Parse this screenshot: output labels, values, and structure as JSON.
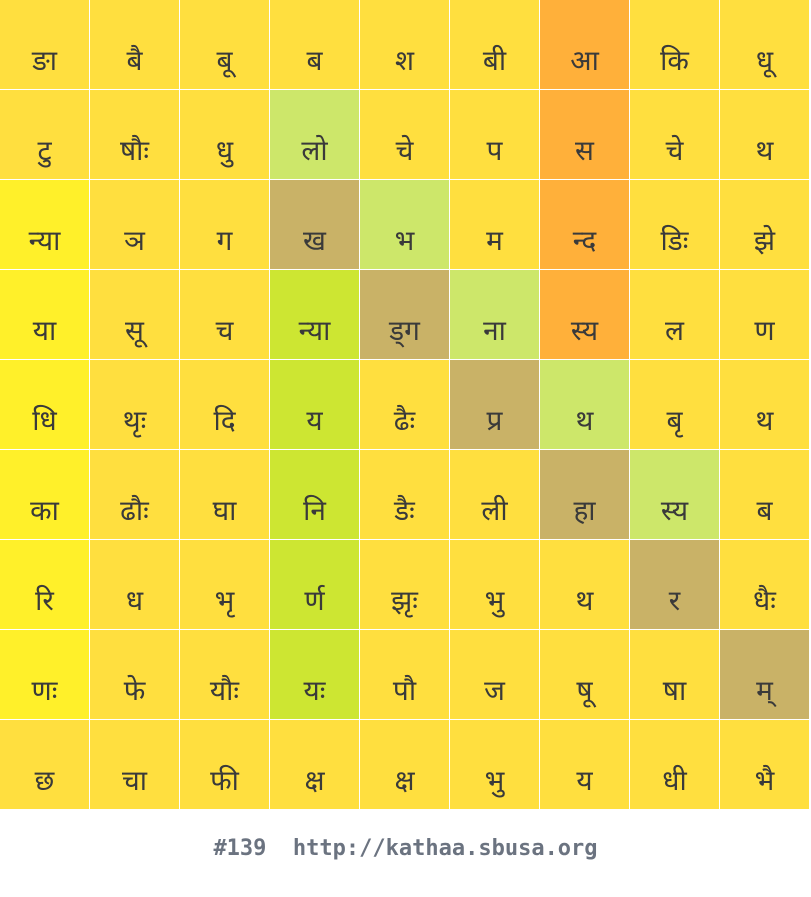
{
  "colors": {
    "Y": "#ffdf3f",
    "B": "#fff02a",
    "O": "#ffb03a",
    "G": "#cde76a",
    "L": "#cde632",
    "K": "#c9b267"
  },
  "grid": {
    "rows": [
      [
        {
          "ch": "ङा",
          "c": "Y"
        },
        {
          "ch": "बै",
          "c": "Y"
        },
        {
          "ch": "बू",
          "c": "Y"
        },
        {
          "ch": "ब",
          "c": "Y"
        },
        {
          "ch": "श",
          "c": "Y"
        },
        {
          "ch": "बी",
          "c": "Y"
        },
        {
          "ch": "आ",
          "c": "O"
        },
        {
          "ch": "कि",
          "c": "Y"
        },
        {
          "ch": "धू",
          "c": "Y"
        }
      ],
      [
        {
          "ch": "टु",
          "c": "Y"
        },
        {
          "ch": "षौः",
          "c": "Y"
        },
        {
          "ch": "धु",
          "c": "Y"
        },
        {
          "ch": "लो",
          "c": "G"
        },
        {
          "ch": "चे",
          "c": "Y"
        },
        {
          "ch": "प",
          "c": "Y"
        },
        {
          "ch": "स",
          "c": "O"
        },
        {
          "ch": "चे",
          "c": "Y"
        },
        {
          "ch": "थ",
          "c": "Y"
        }
      ],
      [
        {
          "ch": "न्या",
          "c": "B"
        },
        {
          "ch": "ञ",
          "c": "Y"
        },
        {
          "ch": "ग",
          "c": "Y"
        },
        {
          "ch": "ख",
          "c": "K"
        },
        {
          "ch": "भ",
          "c": "G"
        },
        {
          "ch": "म",
          "c": "Y"
        },
        {
          "ch": "न्द",
          "c": "O"
        },
        {
          "ch": "डिः",
          "c": "Y"
        },
        {
          "ch": "झे",
          "c": "Y"
        }
      ],
      [
        {
          "ch": "या",
          "c": "B"
        },
        {
          "ch": "सू",
          "c": "Y"
        },
        {
          "ch": "च",
          "c": "Y"
        },
        {
          "ch": "न्या",
          "c": "L"
        },
        {
          "ch": "ड्ग",
          "c": "K"
        },
        {
          "ch": "ना",
          "c": "G"
        },
        {
          "ch": "स्य",
          "c": "O"
        },
        {
          "ch": "ल",
          "c": "Y"
        },
        {
          "ch": "ण",
          "c": "Y"
        }
      ],
      [
        {
          "ch": "धि",
          "c": "B"
        },
        {
          "ch": "थृः",
          "c": "Y"
        },
        {
          "ch": "दि",
          "c": "Y"
        },
        {
          "ch": "य",
          "c": "L"
        },
        {
          "ch": "ढैः",
          "c": "Y"
        },
        {
          "ch": "प्र",
          "c": "K"
        },
        {
          "ch": "थ",
          "c": "G"
        },
        {
          "ch": "बृ",
          "c": "Y"
        },
        {
          "ch": "थ",
          "c": "Y"
        }
      ],
      [
        {
          "ch": "का",
          "c": "B"
        },
        {
          "ch": "ढौः",
          "c": "Y"
        },
        {
          "ch": "घा",
          "c": "Y"
        },
        {
          "ch": "नि",
          "c": "L"
        },
        {
          "ch": "डैः",
          "c": "Y"
        },
        {
          "ch": "ली",
          "c": "Y"
        },
        {
          "ch": "हा",
          "c": "K"
        },
        {
          "ch": "स्य",
          "c": "G"
        },
        {
          "ch": "ब",
          "c": "Y"
        }
      ],
      [
        {
          "ch": "रि",
          "c": "B"
        },
        {
          "ch": "ध",
          "c": "Y"
        },
        {
          "ch": "भृ",
          "c": "Y"
        },
        {
          "ch": "र्ण",
          "c": "L"
        },
        {
          "ch": "झृः",
          "c": "Y"
        },
        {
          "ch": "भु",
          "c": "Y"
        },
        {
          "ch": "थ",
          "c": "Y"
        },
        {
          "ch": "र",
          "c": "K"
        },
        {
          "ch": "धैः",
          "c": "Y"
        }
      ],
      [
        {
          "ch": "णः",
          "c": "B"
        },
        {
          "ch": "फे",
          "c": "Y"
        },
        {
          "ch": "यौः",
          "c": "Y"
        },
        {
          "ch": "यः",
          "c": "L"
        },
        {
          "ch": "पौ",
          "c": "Y"
        },
        {
          "ch": "ज",
          "c": "Y"
        },
        {
          "ch": "षू",
          "c": "Y"
        },
        {
          "ch": "षा",
          "c": "Y"
        },
        {
          "ch": "म्",
          "c": "K"
        }
      ],
      [
        {
          "ch": "छ",
          "c": "Y"
        },
        {
          "ch": "चा",
          "c": "Y"
        },
        {
          "ch": "फी",
          "c": "Y"
        },
        {
          "ch": "क्ष",
          "c": "Y"
        },
        {
          "ch": "क्ष",
          "c": "Y"
        },
        {
          "ch": "भु",
          "c": "Y"
        },
        {
          "ch": "य",
          "c": "Y"
        },
        {
          "ch": "धी",
          "c": "Y"
        },
        {
          "ch": "भै",
          "c": "Y"
        }
      ]
    ]
  },
  "footer": {
    "text": "#139  http://kathaa.sbusa.org"
  }
}
